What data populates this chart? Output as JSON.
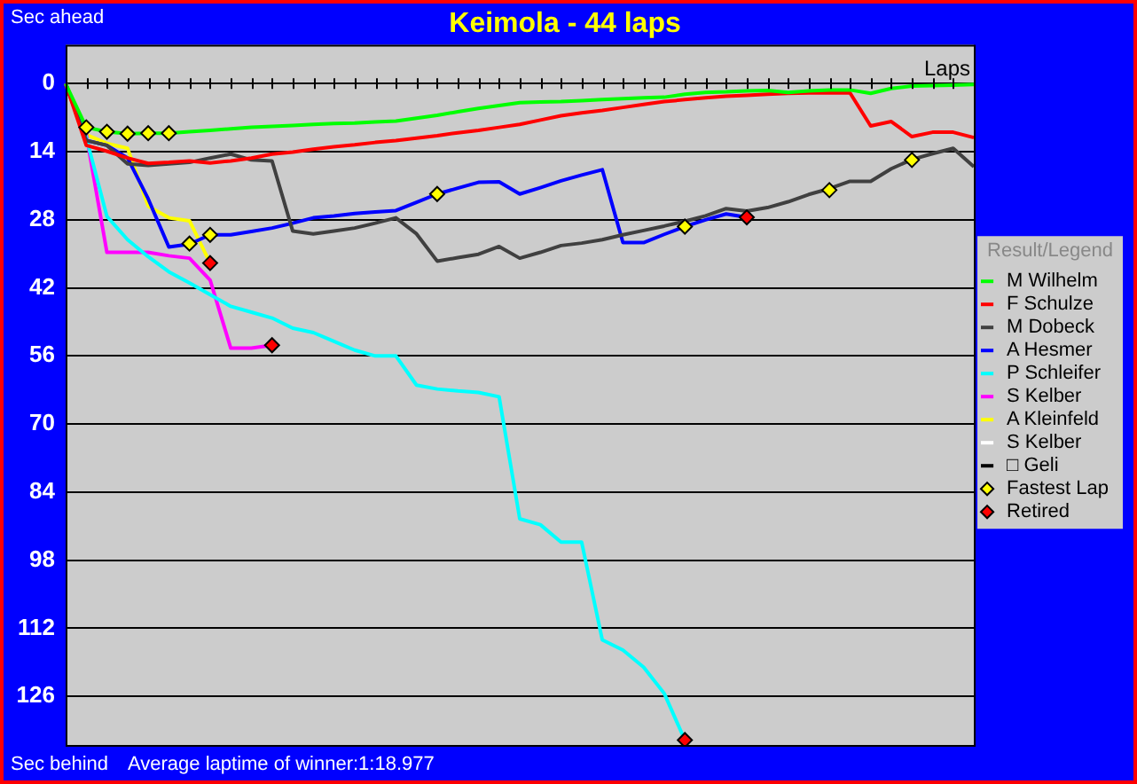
{
  "chart_data": {
    "type": "line",
    "title": "Keimola - 44 laps",
    "xlabel": "Laps",
    "annotations": [
      "Sec ahead",
      "Sec behind",
      "Average laptime of winner:1:18.977"
    ],
    "categories": [
      null,
      null,
      null,
      null,
      null,
      null,
      null,
      null,
      null,
      null,
      null,
      null,
      null,
      null,
      null,
      null,
      null,
      null,
      null,
      null,
      null,
      null,
      null,
      null,
      null,
      null,
      null,
      null,
      null,
      null,
      null,
      null,
      null,
      null,
      null,
      null,
      null,
      null,
      null,
      null,
      null,
      null,
      null,
      null,
      null
    ],
    "ylim": [
      136,
      -8
    ],
    "yticks": [
      0,
      14,
      28,
      42,
      56,
      70,
      84,
      98,
      112,
      126
    ],
    "grid": "y",
    "tick_labels": "y",
    "legend": "right",
    "legend_title": "Result/Legend",
    "marker": "none",
    "line_style": "solid",
    "series": [
      {
        "name": "M Wilhelm",
        "color": "#00ff00",
        "values": [
          0,
          9.0,
          9.9,
          10.3,
          10.2,
          10.2,
          9.9,
          9.6,
          9.3,
          9.0,
          8.8,
          8.6,
          8.4,
          8.2,
          8.1,
          7.9,
          7.7,
          7.1,
          6.5,
          5.8,
          5.1,
          4.5,
          3.9,
          3.8,
          3.7,
          3.5,
          3.3,
          3.1,
          2.9,
          2.8,
          2.2,
          1.8,
          1.7,
          1.5,
          1.4,
          1.8,
          1.5,
          1.3,
          1.3,
          2.0,
          1.0,
          0.5,
          0.4,
          0.3,
          0.2
        ]
      },
      {
        "name": "F Schulze",
        "color": "#ff0000",
        "values": [
          0,
          12.7,
          13.9,
          15.3,
          16.4,
          16.2,
          15.9,
          16.3,
          15.9,
          15.3,
          14.5,
          14.1,
          13.5,
          13.0,
          12.6,
          12.1,
          11.7,
          11.2,
          10.7,
          10.1,
          9.6,
          9.0,
          8.4,
          7.5,
          6.6,
          6.0,
          5.5,
          4.9,
          4.3,
          3.7,
          3.3,
          2.9,
          2.6,
          2.4,
          2.2,
          2.0,
          1.9,
          1.9,
          1.9,
          8.7,
          7.8,
          10.9,
          10.0,
          10.0,
          11.1
        ]
      },
      {
        "name": "M Dobeck",
        "color": "#404040",
        "values": [
          0,
          11.7,
          12.7,
          16.5,
          16.8,
          16.5,
          16.2,
          15.3,
          14.5,
          15.7,
          15.9,
          30.3,
          30.9,
          30.3,
          29.7,
          28.7,
          27.6,
          30.9,
          36.5,
          35.8,
          35.1,
          33.5,
          35.9,
          34.7,
          33.3,
          32.8,
          32.1,
          31.1,
          30.2,
          29.3,
          28.3,
          27.2,
          25.7,
          26.2,
          25.5,
          24.3,
          22.8,
          21.6,
          20.1,
          20.1,
          17.5,
          15.6,
          14.4,
          13.3,
          17.1
        ]
      },
      {
        "name": "A Hesmer",
        "color": "#0000ff",
        "values": [
          0,
          11.7,
          12.7,
          15.3,
          23.7,
          33.6,
          33.0,
          31.1,
          31.1,
          30.4,
          29.7,
          28.7,
          27.6,
          27.2,
          26.7,
          26.4,
          26.1,
          24.4,
          22.7,
          21.5,
          20.3,
          20.2,
          22.7,
          21.4,
          20.0,
          18.8,
          17.7,
          32.7,
          32.7,
          31.0,
          29.4,
          28.0,
          26.8,
          27.5,
          null,
          null,
          null,
          null,
          null,
          null,
          null,
          null,
          null,
          null,
          null
        ]
      },
      {
        "name": "P Schleifer",
        "color": "#00ffff",
        "values": [
          0,
          11.1,
          27.3,
          32.1,
          35.6,
          38.7,
          41.0,
          43.4,
          45.8,
          47.0,
          48.2,
          50.3,
          51.2,
          53.0,
          54.8,
          56.0,
          56.0,
          62.0,
          62.8,
          63.2,
          63.5,
          64.4,
          89.5,
          90.7,
          94.3,
          94.3,
          114.4,
          116.5,
          120.0,
          125.4,
          135.0,
          null,
          null,
          null,
          null,
          null,
          null,
          null,
          null,
          null,
          null,
          null,
          null,
          null,
          null
        ]
      },
      {
        "name": "S Kelber",
        "color": "#ff00ff",
        "values": [
          0,
          10.5,
          34.7,
          34.7,
          34.7,
          35.4,
          35.9,
          40.4,
          54.4,
          54.4,
          53.8,
          null,
          null,
          null,
          null,
          null,
          null,
          null,
          null,
          null,
          null,
          null,
          null,
          null,
          null,
          null,
          null,
          null,
          null,
          null,
          null,
          null,
          null,
          null,
          null,
          null,
          null,
          null,
          null,
          null,
          null,
          null,
          null,
          null,
          null
        ]
      },
      {
        "name": "A Kleinfeld",
        "color": "#ffff00",
        "values": [
          0,
          10.5,
          12.3,
          13.3,
          25.2,
          27.6,
          28.2,
          36.9,
          null,
          null,
          null,
          null,
          null,
          null,
          null,
          null,
          null,
          null,
          null,
          null,
          null,
          null,
          null,
          null,
          null,
          null,
          null,
          null,
          null,
          null,
          null,
          null,
          null,
          null,
          null,
          null,
          null,
          null,
          null,
          null,
          null,
          null,
          null,
          null,
          null
        ]
      },
      {
        "name": "S Kelber",
        "color": "#ffffff",
        "values": [
          null,
          null,
          null,
          null,
          null,
          null,
          null,
          null,
          null,
          null,
          null,
          null,
          null,
          null,
          null,
          null,
          null,
          null,
          null,
          null,
          null,
          null,
          null,
          null,
          null,
          null,
          null,
          null,
          null,
          null,
          null,
          null,
          null,
          null,
          null,
          null,
          null,
          null,
          null,
          null,
          null,
          null,
          null,
          null,
          null
        ]
      },
      {
        "name": "□ Geli",
        "color": "#000000",
        "values": [
          null,
          null,
          null,
          null,
          null,
          null,
          null,
          null,
          null,
          null,
          null,
          null,
          null,
          null,
          null,
          null,
          null,
          null,
          null,
          null,
          null,
          null,
          null,
          null,
          null,
          null,
          null,
          null,
          null,
          null,
          null,
          null,
          null,
          null,
          null,
          null,
          null,
          null,
          null,
          null,
          null,
          null,
          null,
          null,
          null
        ]
      },
      {
        "name": "Fastest Lap",
        "type": "scatter",
        "marker": "diamond",
        "color": "#ffff00",
        "values": [
          null,
          9.0,
          9.9,
          10.3,
          10.2,
          10.2,
          32.9,
          31.1,
          null,
          null,
          null,
          null,
          null,
          null,
          null,
          null,
          null,
          null,
          22.7,
          null,
          null,
          null,
          null,
          null,
          null,
          null,
          null,
          null,
          null,
          null,
          29.4,
          null,
          null,
          null,
          null,
          null,
          null,
          21.9,
          null,
          null,
          null,
          15.7,
          null,
          null,
          null
        ]
      },
      {
        "name": "Retired",
        "type": "scatter",
        "marker": "diamond",
        "color": "#ff0000",
        "values": [
          null,
          null,
          null,
          null,
          null,
          null,
          null,
          36.9,
          null,
          null,
          53.8,
          null,
          null,
          null,
          null,
          null,
          null,
          null,
          null,
          null,
          null,
          null,
          null,
          null,
          null,
          null,
          null,
          null,
          null,
          null,
          135.0,
          null,
          null,
          27.5,
          null,
          null,
          null,
          null,
          null,
          null,
          null,
          null,
          null,
          null,
          null
        ]
      }
    ]
  }
}
